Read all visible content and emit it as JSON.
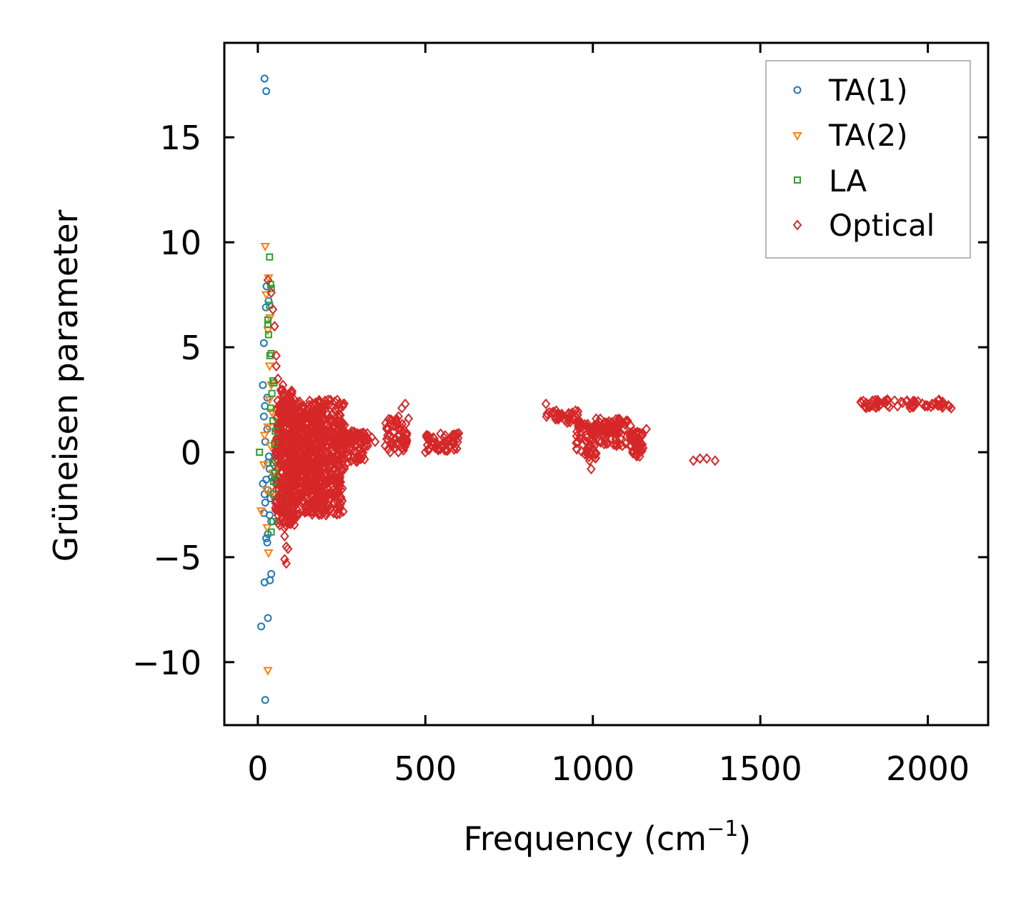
{
  "chart_data": {
    "type": "scatter",
    "title": "",
    "xlabel": "Frequency (cm",
    "xlabel_sup": "−1",
    "xlabel_end": ")",
    "ylabel": "Grüneisen parameter",
    "xlim": [
      -100,
      2180
    ],
    "ylim": [
      -13,
      19.5
    ],
    "xticks": [
      0,
      500,
      1000,
      1500,
      2000
    ],
    "xtick_labels": [
      "0",
      "500",
      "1000",
      "1500",
      "2000"
    ],
    "yticks": [
      -10,
      -5,
      0,
      5,
      10,
      15
    ],
    "ytick_labels": [
      "−10",
      "−5",
      "0",
      "5",
      "10",
      "15"
    ],
    "grid": false,
    "legend_position": "top-right",
    "series": [
      {
        "name": "TA(1)",
        "marker": "circle",
        "color": "#1f77b4",
        "points": [
          [
            20,
            17.8
          ],
          [
            25,
            17.2
          ],
          [
            18,
            5.2
          ],
          [
            15,
            3.2
          ],
          [
            18,
            1.7
          ],
          [
            22,
            0.5
          ],
          [
            28,
            2.6
          ],
          [
            30,
            -0.5
          ],
          [
            25,
            -1.3
          ],
          [
            20,
            -2.0
          ],
          [
            30,
            -1.8
          ],
          [
            22,
            -2.4
          ],
          [
            35,
            -3.0
          ],
          [
            40,
            -3.3
          ],
          [
            30,
            -3.9
          ],
          [
            25,
            -4.1
          ],
          [
            28,
            -4.3
          ],
          [
            40,
            -5.8
          ],
          [
            20,
            -6.2
          ],
          [
            30,
            -7.9
          ],
          [
            10,
            -8.3
          ],
          [
            22,
            -11.8
          ],
          [
            35,
            -0.8
          ],
          [
            18,
            -2.9
          ],
          [
            42,
            -1.2
          ],
          [
            24,
            6.9
          ],
          [
            32,
            7.2
          ],
          [
            26,
            7.9
          ],
          [
            38,
            -2.2
          ],
          [
            15,
            -1.5
          ],
          [
            28,
            1.1
          ],
          [
            33,
            -0.2
          ],
          [
            21,
            2.2
          ],
          [
            36,
            -6.1
          ]
        ]
      },
      {
        "name": "TA(2)",
        "marker": "triangle-down",
        "color": "#ff7f0e",
        "points": [
          [
            22,
            9.8
          ],
          [
            32,
            8.3
          ],
          [
            25,
            7.5
          ],
          [
            30,
            5.8
          ],
          [
            35,
            4.1
          ],
          [
            30,
            -10.4
          ],
          [
            32,
            -4.8
          ],
          [
            28,
            -3.6
          ],
          [
            10,
            -2.8
          ],
          [
            40,
            -2.0
          ],
          [
            45,
            -1.0
          ],
          [
            38,
            0.3
          ],
          [
            30,
            1.2
          ],
          [
            35,
            2.5
          ],
          [
            20,
            0.8
          ],
          [
            40,
            3.2
          ],
          [
            25,
            -1.8
          ],
          [
            42,
            1.9
          ],
          [
            18,
            -0.6
          ],
          [
            36,
            6.4
          ]
        ]
      },
      {
        "name": "LA",
        "marker": "square",
        "color": "#2ca02c",
        "points": [
          [
            35,
            9.3
          ],
          [
            38,
            8.0
          ],
          [
            40,
            7.8
          ],
          [
            35,
            7.0
          ],
          [
            30,
            6.3
          ],
          [
            32,
            5.6
          ],
          [
            40,
            4.7
          ],
          [
            45,
            3.4
          ],
          [
            42,
            2.8
          ],
          [
            38,
            2.1
          ],
          [
            45,
            1.5
          ],
          [
            50,
            0.4
          ],
          [
            5,
            0.0
          ],
          [
            50,
            -1.0
          ],
          [
            48,
            -2.0
          ],
          [
            45,
            -3.3
          ],
          [
            40,
            -3.8
          ],
          [
            48,
            3.3
          ],
          [
            44,
            -0.5
          ],
          [
            36,
            4.6
          ],
          [
            52,
            1.0
          ],
          [
            47,
            -1.4
          ],
          [
            30,
            6.1
          ]
        ]
      },
      {
        "name": "Optical",
        "marker": "diamond",
        "color": "#d62728",
        "points": [
          [
            30,
            8.2
          ],
          [
            40,
            7.6
          ],
          [
            45,
            6.8
          ],
          [
            50,
            6.0
          ],
          [
            55,
            4.6
          ],
          [
            55,
            4.1
          ],
          [
            60,
            3.5
          ],
          [
            75,
            3.2
          ],
          [
            70,
            2.9
          ],
          [
            80,
            2.8
          ],
          [
            85,
            2.6
          ],
          [
            90,
            2.2
          ],
          [
            120,
            2.2
          ],
          [
            130,
            1.9
          ],
          [
            210,
            2.5
          ],
          [
            230,
            2.4
          ],
          [
            60,
            -3.0
          ],
          [
            80,
            -3.6
          ],
          [
            80,
            -4.0
          ],
          [
            85,
            -4.5
          ],
          [
            90,
            -4.6
          ],
          [
            80,
            -5.1
          ],
          [
            85,
            -5.3
          ],
          [
            110,
            -3.2
          ],
          [
            150,
            -2.8
          ],
          [
            160,
            -2.5
          ],
          [
            180,
            -1.8
          ],
          [
            60,
            -2.2
          ],
          [
            100,
            -2.0
          ],
          [
            120,
            -1.5
          ],
          [
            90,
            -1.0
          ],
          [
            70,
            1.0
          ],
          [
            60,
            0.5
          ],
          [
            330,
            0.6
          ],
          [
            340,
            0.7
          ],
          [
            350,
            0.5
          ],
          [
            380,
            0.3
          ],
          [
            385,
            1.1
          ],
          [
            400,
            1.5
          ],
          [
            420,
            1.7
          ],
          [
            430,
            2.1
          ],
          [
            440,
            2.3
          ],
          [
            450,
            1.6
          ],
          [
            445,
            0.9
          ],
          [
            410,
            0.2
          ],
          [
            395,
            0.0
          ],
          [
            500,
            0.0
          ],
          [
            510,
            0.1
          ],
          [
            530,
            0.2
          ],
          [
            560,
            0.4
          ],
          [
            590,
            0.8
          ],
          [
            600,
            0.9
          ],
          [
            860,
            2.3
          ],
          [
            870,
            1.9
          ],
          [
            900,
            1.7
          ],
          [
            930,
            1.6
          ],
          [
            960,
            1.5
          ],
          [
            980,
            0.5
          ],
          [
            990,
            -0.4
          ],
          [
            995,
            -0.8
          ],
          [
            1010,
            1.6
          ],
          [
            1040,
            1.4
          ],
          [
            1080,
            1.5
          ],
          [
            1100,
            1.5
          ],
          [
            1120,
            1.0
          ],
          [
            1130,
            0.3
          ],
          [
            1140,
            -0.2
          ],
          [
            1150,
            0.2
          ],
          [
            1160,
            1.1
          ],
          [
            1300,
            -0.4
          ],
          [
            1320,
            -0.3
          ],
          [
            1340,
            -0.3
          ],
          [
            1365,
            -0.4
          ],
          [
            1800,
            2.4
          ],
          [
            1830,
            2.3
          ],
          [
            1860,
            2.3
          ],
          [
            1880,
            2.5
          ],
          [
            1920,
            2.4
          ],
          [
            1960,
            2.3
          ],
          [
            2000,
            2.2
          ],
          [
            2040,
            2.2
          ],
          [
            2070,
            2.1
          ]
        ]
      }
    ],
    "dense_regions": [
      {
        "series": "Optical",
        "x": [
          50,
          260
        ],
        "y": [
          -3.0,
          2.5
        ]
      },
      {
        "series": "Optical",
        "x": [
          60,
          110
        ],
        "y": [
          -3.5,
          3.0
        ]
      },
      {
        "series": "Optical",
        "x": [
          100,
          200
        ],
        "y": [
          -2.5,
          1.8
        ]
      },
      {
        "series": "Optical",
        "x": [
          200,
          320
        ],
        "y": [
          -0.5,
          1.0
        ]
      },
      {
        "series": "Optical",
        "x": [
          240,
          330
        ],
        "y": [
          0.3,
          0.9
        ]
      },
      {
        "series": "Optical",
        "x": [
          380,
          445
        ],
        "y": [
          0.0,
          1.6
        ]
      },
      {
        "series": "Optical",
        "x": [
          500,
          600
        ],
        "y": [
          0.0,
          0.9
        ]
      },
      {
        "series": "Optical",
        "x": [
          860,
          960
        ],
        "y": [
          1.4,
          2.0
        ]
      },
      {
        "series": "Optical",
        "x": [
          950,
          1010
        ],
        "y": [
          -0.3,
          1.4
        ]
      },
      {
        "series": "Optical",
        "x": [
          1000,
          1120
        ],
        "y": [
          0.3,
          1.6
        ]
      },
      {
        "series": "Optical",
        "x": [
          1110,
          1150
        ],
        "y": [
          -0.2,
          1.0
        ]
      },
      {
        "series": "Optical",
        "x": [
          1800,
          2070
        ],
        "y": [
          2.1,
          2.5
        ]
      }
    ]
  }
}
